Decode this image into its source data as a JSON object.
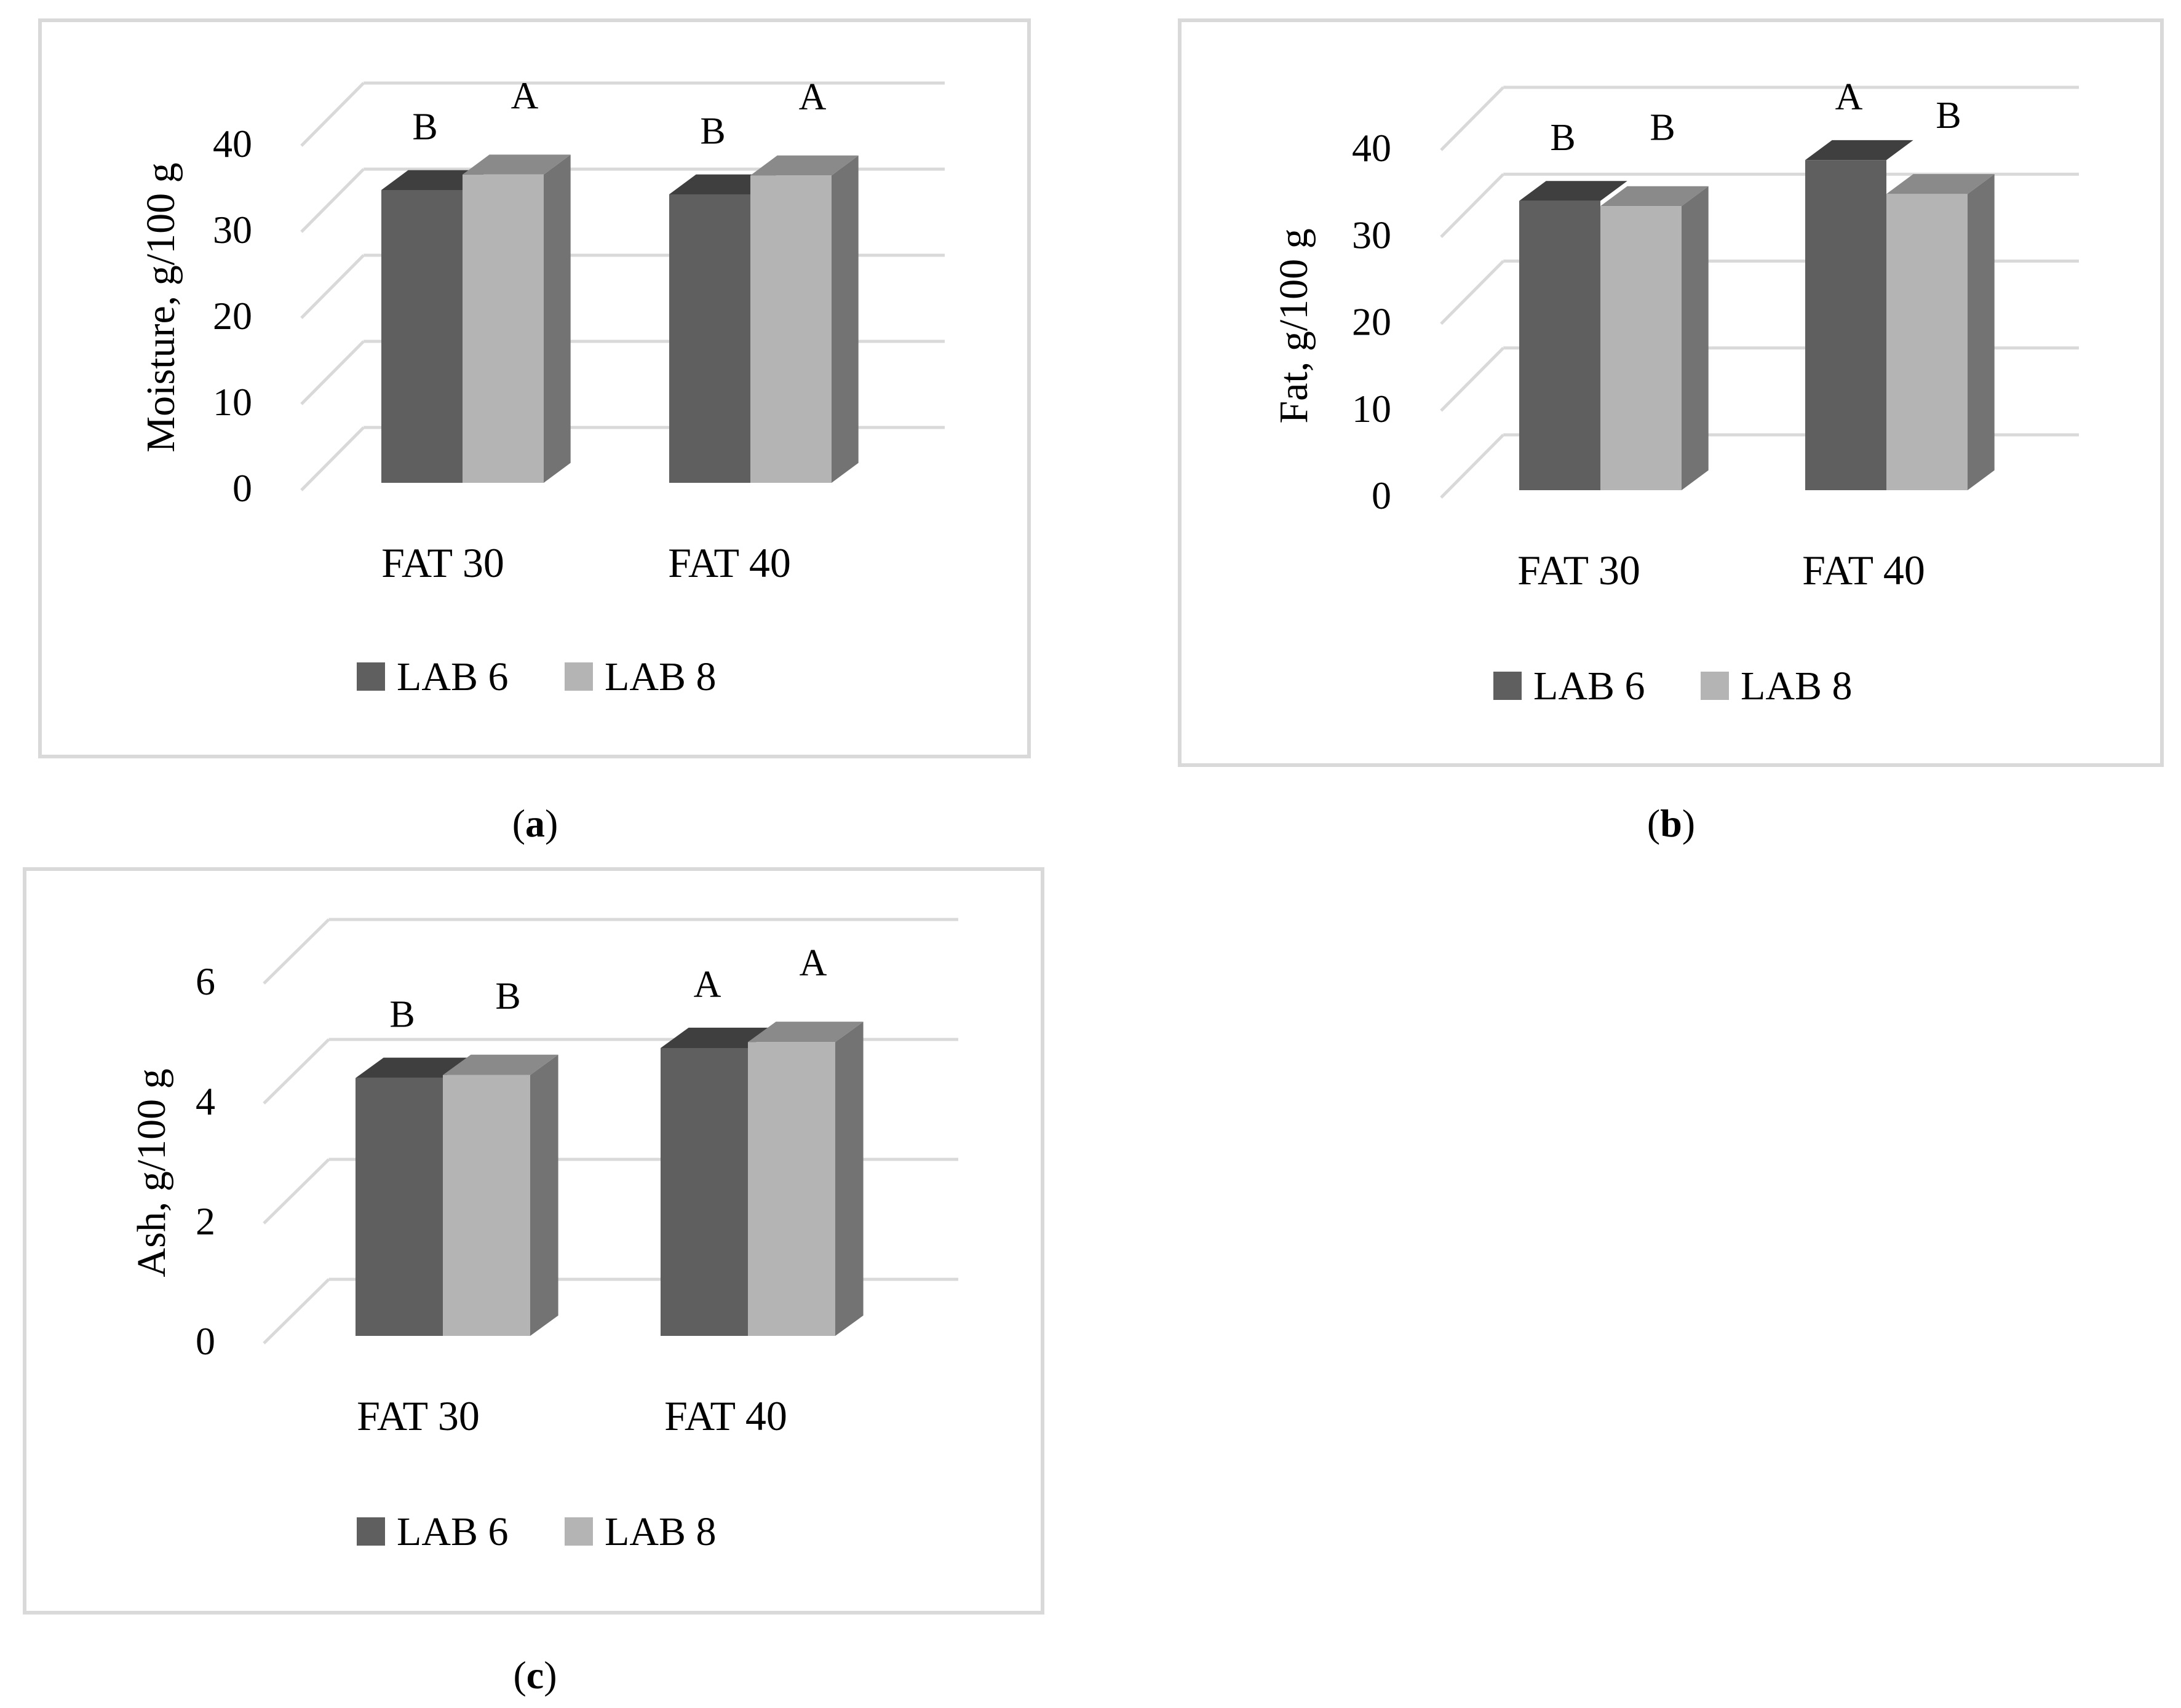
{
  "figure": {
    "colors": {
      "lab6_front": "#5f5f5f",
      "lab6_top": "#3f3f3f",
      "lab8_front": "#b4b4b4",
      "lab8_top": "#8a8a8a",
      "side": "#737373",
      "grid": "#d9d9d9",
      "frame": "#d9d9d9"
    }
  },
  "chart_data": [
    {
      "id": "a",
      "type": "bar",
      "caption_letter": "a",
      "ylabel": "Moisture, g/100 g",
      "categories": [
        "FAT 30",
        "FAT 40"
      ],
      "ylim": [
        0,
        40
      ],
      "yticks": [
        "0",
        "10",
        "20",
        "30",
        "40"
      ],
      "yticks_values": [
        0,
        10,
        20,
        30,
        40
      ],
      "series": [
        {
          "name": "LAB 6",
          "values": [
            34.0,
            33.5
          ],
          "letters": [
            "B",
            "B"
          ]
        },
        {
          "name": "LAB 8",
          "values": [
            35.8,
            35.7
          ],
          "letters": [
            "A",
            "A"
          ]
        }
      ]
    },
    {
      "id": "b",
      "type": "bar",
      "caption_letter": "b",
      "ylabel": "Fat, g/100 g",
      "categories": [
        "FAT 30",
        "FAT 40"
      ],
      "ylim": [
        0,
        40
      ],
      "yticks": [
        "0",
        "10",
        "20",
        "30",
        "40"
      ],
      "yticks_values": [
        0,
        10,
        20,
        30,
        40
      ],
      "series": [
        {
          "name": "LAB 6",
          "values": [
            33.3,
            38.0
          ],
          "letters": [
            "B",
            "A"
          ]
        },
        {
          "name": "LAB 8",
          "values": [
            32.7,
            34.1
          ],
          "letters": [
            "B",
            "B"
          ]
        }
      ]
    },
    {
      "id": "c",
      "type": "bar",
      "caption_letter": "c",
      "ylabel": "Ash, g/100 g",
      "categories": [
        "FAT 30",
        "FAT 40"
      ],
      "ylim": [
        0,
        6
      ],
      "yticks": [
        "0",
        "2",
        "4",
        "6"
      ],
      "yticks_values": [
        0,
        2,
        4,
        6
      ],
      "series": [
        {
          "name": "LAB 6",
          "values": [
            4.3,
            4.8
          ],
          "letters": [
            "B",
            "A"
          ]
        },
        {
          "name": "LAB 8",
          "values": [
            4.35,
            4.9
          ],
          "letters": [
            "B",
            "A"
          ]
        }
      ]
    }
  ]
}
